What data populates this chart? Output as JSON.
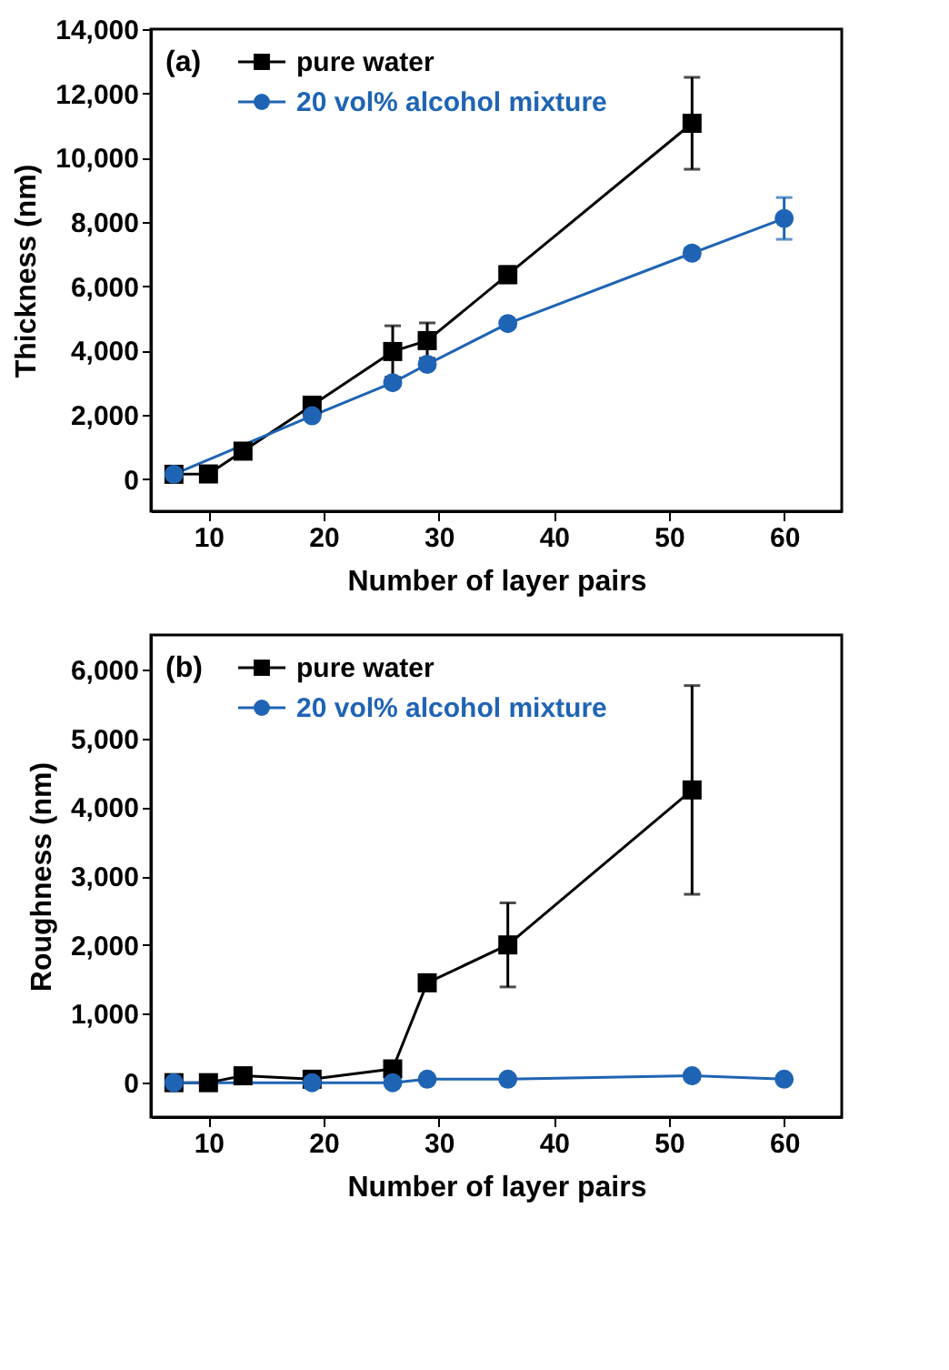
{
  "chart_data": [
    {
      "type": "line",
      "xlabel": "Number of layer pairs",
      "ylabel": "Thickness (nm)",
      "annotations": [
        "(a)"
      ],
      "xlim": [
        5,
        65
      ],
      "xticks": [
        10,
        20,
        30,
        40,
        50,
        60
      ],
      "ylim": [
        -1000,
        14000
      ],
      "yticks": [
        {
          "value": 0,
          "label": "0"
        },
        {
          "value": 2000,
          "label": "2,000"
        },
        {
          "value": 4000,
          "label": "4,000"
        },
        {
          "value": 6000,
          "label": "6,000"
        },
        {
          "value": 8000,
          "label": "8,000"
        },
        {
          "value": 10000,
          "label": "10,000"
        },
        {
          "value": 12000,
          "label": "12,000"
        },
        {
          "value": 14000,
          "label": "14,000"
        }
      ],
      "grid": false,
      "legend": "top left",
      "series": [
        {
          "name": "pure water",
          "color": "#000000",
          "marker": "square",
          "x": [
            7,
            10,
            13,
            19,
            26,
            29,
            36,
            52
          ],
          "values": [
            150,
            160,
            870,
            2300,
            3970,
            4310,
            6360,
            11070
          ],
          "errors": [
            null,
            null,
            null,
            200,
            800,
            550,
            250,
            1430
          ]
        },
        {
          "name": "20 vol% alcohol mixture",
          "color": "#1f64b4",
          "marker": "circle",
          "x": [
            7,
            19,
            26,
            29,
            36,
            52,
            60
          ],
          "values": [
            150,
            1970,
            3000,
            3570,
            4840,
            7030,
            8110
          ],
          "errors": [
            null,
            null,
            null,
            null,
            null,
            150,
            650
          ]
        }
      ]
    },
    {
      "type": "line",
      "xlabel": "Number of layer pairs",
      "ylabel": "Roughness (nm)",
      "annotations": [
        "(b)"
      ],
      "xlim": [
        5,
        65
      ],
      "xticks": [
        10,
        20,
        30,
        40,
        50,
        60
      ],
      "ylim": [
        -500,
        6500
      ],
      "yticks": [
        {
          "value": 0,
          "label": "0"
        },
        {
          "value": 1000,
          "label": "1,000"
        },
        {
          "value": 2000,
          "label": "2,000"
        },
        {
          "value": 3000,
          "label": "3,000"
        },
        {
          "value": 4000,
          "label": "4,000"
        },
        {
          "value": 5000,
          "label": "5,000"
        },
        {
          "value": 6000,
          "label": "6,000"
        }
      ],
      "grid": false,
      "legend": "top left",
      "series": [
        {
          "name": "pure water",
          "color": "#000000",
          "marker": "square",
          "x": [
            7,
            10,
            13,
            19,
            26,
            29,
            36,
            52
          ],
          "values": [
            0,
            0,
            100,
            50,
            200,
            1450,
            2000,
            4250
          ],
          "errors": [
            null,
            null,
            null,
            null,
            null,
            null,
            610,
            1515
          ]
        },
        {
          "name": "20 vol% alcohol mixture",
          "color": "#1f64b4",
          "marker": "circle",
          "x": [
            7,
            19,
            26,
            29,
            36,
            52,
            60
          ],
          "values": [
            0,
            0,
            0,
            50,
            50,
            100,
            50
          ]
        }
      ]
    }
  ]
}
